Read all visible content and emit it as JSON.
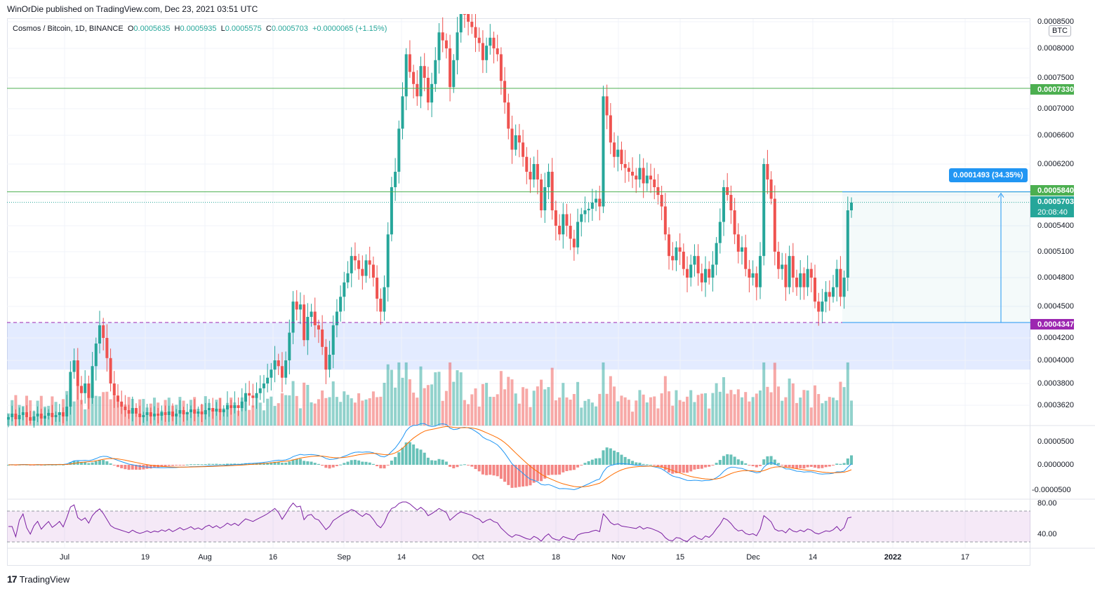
{
  "header": {
    "publisher": "WinOrDie published on TradingView.com, Dec 23, 2021 03:51 UTC"
  },
  "legend": {
    "symbol": "Cosmos / Bitcoin, 1D, BINANCE",
    "open_label": "O",
    "open": "0.0005635",
    "high_label": "H",
    "high": "0.0005935",
    "low_label": "L",
    "low": "0.0005575",
    "close_label": "C",
    "close": "0.0005703",
    "change": "+0.0000065 (+1.15%)"
  },
  "currency_button": "BTC",
  "price_axis": [
    "0.0008500",
    "0.0008000",
    "0.0007500",
    "0.0007000",
    "0.0006600",
    "0.0006200",
    "0.0005400",
    "0.0005100",
    "0.0004800",
    "0.0004500",
    "0.0004200",
    "0.0004000",
    "0.0003800",
    "0.0003620"
  ],
  "price_tags": {
    "resistance": "0.0007330",
    "level": "0.0005840",
    "last": "0.0005703",
    "countdown": "20:08:40",
    "support": "0.0004347"
  },
  "measure_label": "0.0001493 (34.35%)",
  "macd_axis": [
    "0.0000500",
    "0.0000000",
    "-0.0000500"
  ],
  "rsi_axis": [
    "80.00",
    "40.00"
  ],
  "time_axis": [
    {
      "label": "Jul",
      "bold": false
    },
    {
      "label": "19",
      "bold": false
    },
    {
      "label": "Aug",
      "bold": false
    },
    {
      "label": "16",
      "bold": false
    },
    {
      "label": "Sep",
      "bold": false
    },
    {
      "label": "14",
      "bold": false
    },
    {
      "label": "Oct",
      "bold": false
    },
    {
      "label": "18",
      "bold": false
    },
    {
      "label": "Nov",
      "bold": false
    },
    {
      "label": "15",
      "bold": false
    },
    {
      "label": "Dec",
      "bold": false
    },
    {
      "label": "14",
      "bold": false
    },
    {
      "label": "2022",
      "bold": true
    },
    {
      "label": "17",
      "bold": false
    }
  ],
  "footer": {
    "brand": "TradingView"
  },
  "colors": {
    "up": "#26a69a",
    "down": "#ef5350",
    "macd": "#2196f3",
    "signal": "#ff6d00",
    "rsi": "#7b1fa2",
    "level": "#4caf50",
    "zone": "#2962ff"
  },
  "chart_data": {
    "type": "candlestick",
    "pair": "ATOM/BTC",
    "y_range": [
      0.00035,
      0.00086
    ],
    "levels": [
      0.000733,
      0.000584,
      0.0004347
    ],
    "support_zone": [
      0.000392,
      0.0004347
    ],
    "closes": [
      0.000345,
      0.00035,
      0.000342,
      0.000348,
      0.000352,
      0.000345,
      0.00034,
      0.000346,
      0.00035,
      0.000343,
      0.000347,
      0.000351,
      0.000345,
      0.000348,
      0.000352,
      0.000346,
      0.00036,
      0.00039,
      0.0004,
      0.000378,
      0.000372,
      0.00038,
      0.000368,
      0.000395,
      0.000415,
      0.000432,
      0.00042,
      0.000402,
      0.00038,
      0.00037,
      0.000365,
      0.00036,
      0.000355,
      0.00035,
      0.000358,
      0.00035,
      0.000345,
      0.000348,
      0.000352,
      0.000346,
      0.00035,
      0.000347,
      0.000352,
      0.000348,
      0.000353,
      0.000346,
      0.00035,
      0.000355,
      0.000349,
      0.000352,
      0.000356,
      0.00035,
      0.000353,
      0.000349,
      0.000355,
      0.000358,
      0.000353,
      0.000357,
      0.000352,
      0.000356,
      0.000362,
      0.000358,
      0.000362,
      0.000358,
      0.000365,
      0.000372,
      0.00037,
      0.000368,
      0.000372,
      0.000376,
      0.00038,
      0.000385,
      0.000392,
      0.0004,
      0.000395,
      0.000385,
      0.0004,
      0.000425,
      0.000455,
      0.000447,
      0.000452,
      0.000418,
      0.00044,
      0.000445,
      0.000432,
      0.000428,
      0.000412,
      0.000392,
      0.000405,
      0.000432,
      0.000445,
      0.00046,
      0.000475,
      0.000485,
      0.000505,
      0.0005,
      0.00049,
      0.000482,
      0.0005,
      0.000495,
      0.00048,
      0.000458,
      0.000445,
      0.00047,
      0.00053,
      0.00059,
      0.00061,
      0.00067,
      0.00072,
      0.00079,
      0.00076,
      0.00074,
      0.00072,
      0.00077,
      0.00075,
      0.00071,
      0.00074,
      0.00078,
      0.00083,
      0.000815,
      0.0008,
      0.000735,
      0.00078,
      0.00083,
      0.00087,
      0.00086,
      0.00085,
      0.00084,
      0.00082,
      0.00081,
      0.00078,
      0.000805,
      0.00082,
      0.0008,
      0.00079,
      0.000745,
      0.00071,
      0.00067,
      0.00064,
      0.00066,
      0.00065,
      0.00063,
      0.00061,
      0.0006,
      0.00062,
      0.0006,
      0.00056,
      0.00059,
      0.00061,
      0.00056,
      0.00054,
      0.00053,
      0.000555,
      0.00054,
      0.000525,
      0.000515,
      0.000545,
      0.000555,
      0.00056,
      0.000562,
      0.00057,
      0.000575,
      0.000565,
      0.00072,
      0.00069,
      0.00065,
      0.00063,
      0.00064,
      0.00062,
      0.000615,
      0.00061,
      0.000605,
      0.0006,
      0.000615,
      0.000595,
      0.000605,
      0.0006,
      0.00059,
      0.00058,
      0.000565,
      0.00053,
      0.000505,
      0.0005,
      0.000515,
      0.00051,
      0.00049,
      0.00048,
      0.000495,
      0.000505,
      0.000485,
      0.000475,
      0.00049,
      0.00048,
      0.000495,
      0.00052,
      0.000545,
      0.00059,
      0.00058,
      0.00056,
      0.00053,
      0.00051,
      0.000515,
      0.00049,
      0.00048,
      0.000485,
      0.00047,
      0.000505,
      0.00062,
      0.0006,
      0.000575,
      0.00051,
      0.00049,
      0.000495,
      0.00047,
      0.000505,
      0.00048,
      0.00047,
      0.000485,
      0.00047,
      0.00049,
      0.00048,
      0.000455,
      0.000445,
      0.000455,
      0.000465,
      0.00046,
      0.00047,
      0.00049,
      0.00046,
      0.00048,
      0.00056,
      0.00057
    ]
  }
}
